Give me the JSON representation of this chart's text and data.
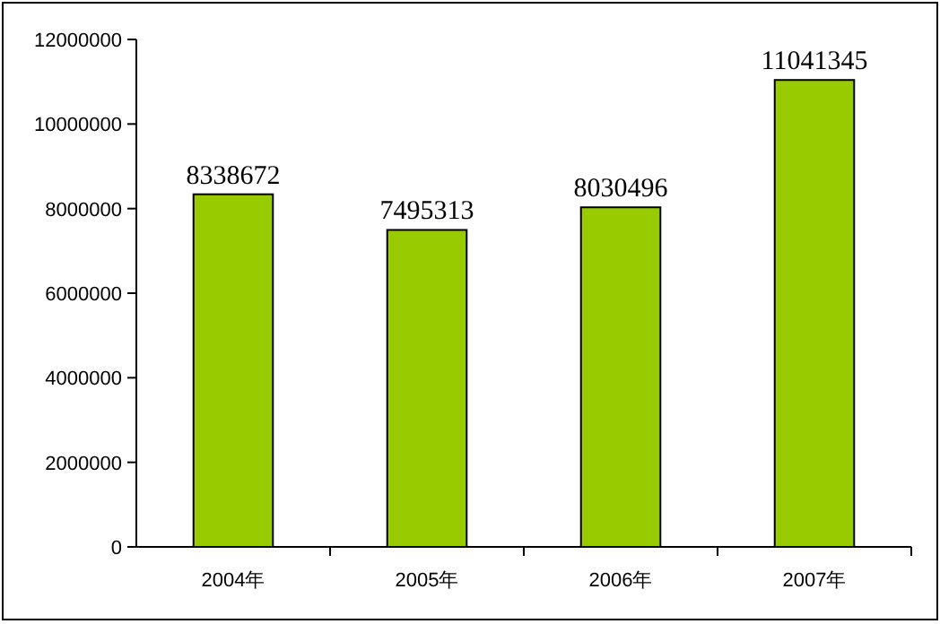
{
  "chart_data": {
    "type": "bar",
    "categories": [
      "2004年",
      "2005年",
      "2006年",
      "2007年"
    ],
    "values": [
      8338672,
      7495313,
      8030496,
      11041345
    ],
    "color": "#99cc00",
    "ylim": [
      0,
      12000000
    ],
    "yticks": [
      0,
      2000000,
      4000000,
      6000000,
      8000000,
      10000000,
      12000000
    ],
    "data_labels": true
  }
}
